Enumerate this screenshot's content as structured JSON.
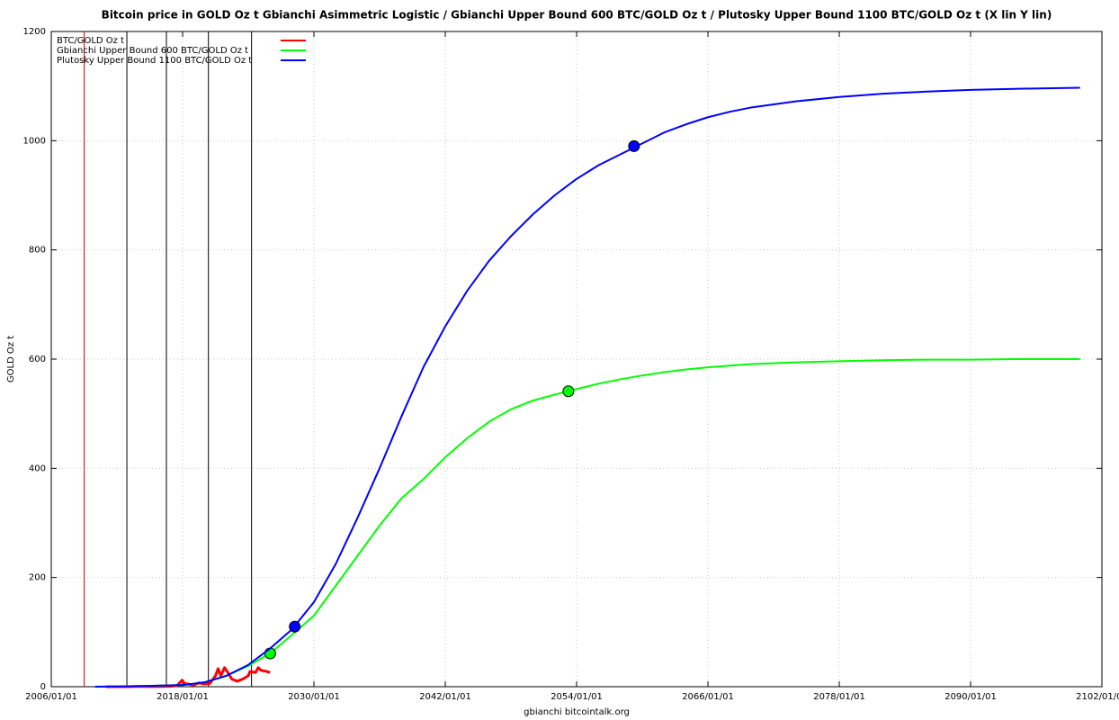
{
  "chart_data": {
    "type": "line",
    "title": "Bitcoin price in GOLD Oz t Gbianchi Asimmetric Logistic / Gbianchi Upper Bound 600  BTC/GOLD Oz t / Plutosky Upper Bound 1100  BTC/GOLD Oz t  (X lin Y lin)",
    "x_label": "gbianchi bitcointalk.org",
    "y_label": "GOLD Oz t",
    "xlim": [
      "2006/01/01",
      "2102/01/01"
    ],
    "xticks": [
      "2006/01/01",
      "2018/01/01",
      "2030/01/01",
      "2042/01/01",
      "2054/01/01",
      "2066/01/01",
      "2078/01/01",
      "2090/01/01",
      "2102/01/01"
    ],
    "ylim": [
      0,
      1200
    ],
    "yticks": [
      0,
      200,
      400,
      600,
      800,
      1000,
      1200
    ],
    "grid": true,
    "legend": "top-left",
    "event_lines": [
      {
        "x": "2009/01/03",
        "color": "#cc0000"
      },
      {
        "x": "2012/11/28",
        "color": "#000000"
      },
      {
        "x": "2016/07/09",
        "color": "#000000"
      },
      {
        "x": "2020/05/11",
        "color": "#000000"
      },
      {
        "x": "2024/04/20",
        "color": "#000000"
      }
    ],
    "series": [
      {
        "name": "BTC/GOLD Oz t",
        "color": "#ff0000",
        "width": 3,
        "x": [
          "2011/01/01",
          "2013/01/01",
          "2014/01/01",
          "2015/01/01",
          "2016/01/01",
          "2017/01/01",
          "2017/07/01",
          "2017/12/15",
          "2018/03/01",
          "2018/07/01",
          "2019/01/01",
          "2019/07/01",
          "2020/01/01",
          "2020/07/01",
          "2021/01/01",
          "2021/04/01",
          "2021/07/01",
          "2021/11/01",
          "2022/03/01",
          "2022/07/01",
          "2023/01/01",
          "2023/07/01",
          "2024/01/01",
          "2024/03/01",
          "2024/09/01",
          "2024/12/01",
          "2025/03/01",
          "2025/09/01",
          "2026/01/01"
        ],
        "values": [
          0,
          0.1,
          0.6,
          0.2,
          0.4,
          0.8,
          2,
          12,
          6,
          5,
          3,
          7,
          5,
          6,
          20,
          33,
          20,
          35,
          25,
          14,
          10,
          14,
          20,
          28,
          26,
          35,
          30,
          28,
          26
        ]
      },
      {
        "name": "Gbianchi Upper Bound 600  BTC/GOLD Oz t",
        "color": "#00ff00",
        "width": 2,
        "x": [
          "2010/01/01",
          "2014/01/01",
          "2018/01/01",
          "2020/01/01",
          "2022/01/01",
          "2024/01/01",
          "2026/01/01",
          "2028/01/01",
          "2030/01/01",
          "2032/01/01",
          "2034/01/01",
          "2036/01/01",
          "2038/01/01",
          "2040/01/01",
          "2042/01/01",
          "2044/01/01",
          "2046/01/01",
          "2048/01/01",
          "2050/01/01",
          "2052/01/01",
          "2054/01/01",
          "2056/01/01",
          "2058/01/01",
          "2060/01/01",
          "2062/01/01",
          "2064/01/01",
          "2066/01/01",
          "2068/01/01",
          "2070/01/01",
          "2074/01/01",
          "2078/01/01",
          "2082/01/01",
          "2086/01/01",
          "2090/01/01",
          "2094/01/01",
          "2100/01/01"
        ],
        "values": [
          0,
          1,
          3,
          8,
          20,
          38,
          61,
          95,
          130,
          185,
          240,
          295,
          345,
          380,
          420,
          455,
          485,
          508,
          524,
          535,
          545,
          555,
          563,
          570,
          576,
          581,
          585,
          588,
          591,
          594,
          596,
          598,
          599,
          599,
          600,
          600
        ],
        "markers": [
          {
            "x": "2026/01/01",
            "value": 61
          },
          {
            "x": "2053/04/01",
            "value": 541
          }
        ]
      },
      {
        "name": "Plutosky Upper Bound 1100  BTC/GOLD Oz t",
        "color": "#0000ff",
        "width": 2,
        "x": [
          "2010/01/01",
          "2014/01/01",
          "2018/01/01",
          "2020/01/01",
          "2022/01/01",
          "2024/01/01",
          "2026/01/01",
          "2028/01/01",
          "2030/01/01",
          "2032/01/01",
          "2034/01/01",
          "2036/01/01",
          "2038/01/01",
          "2040/01/01",
          "2042/01/01",
          "2044/01/01",
          "2046/01/01",
          "2048/01/01",
          "2050/01/01",
          "2052/01/01",
          "2054/01/01",
          "2056/01/01",
          "2058/01/01",
          "2060/01/01",
          "2062/01/01",
          "2064/01/01",
          "2066/01/01",
          "2068/01/01",
          "2070/01/01",
          "2074/01/01",
          "2078/01/01",
          "2082/01/01",
          "2086/01/01",
          "2090/01/01",
          "2094/01/01",
          "2100/01/01"
        ],
        "values": [
          0,
          1,
          3,
          8,
          20,
          40,
          70,
          105,
          155,
          225,
          310,
          400,
          495,
          585,
          660,
          725,
          780,
          825,
          865,
          900,
          930,
          955,
          975,
          995,
          1015,
          1030,
          1043,
          1053,
          1061,
          1072,
          1080,
          1086,
          1090,
          1093,
          1095,
          1097
        ],
        "markers": [
          {
            "x": "2028/04/01",
            "value": 110
          },
          {
            "x": "2059/04/01",
            "value": 990
          }
        ]
      }
    ]
  }
}
